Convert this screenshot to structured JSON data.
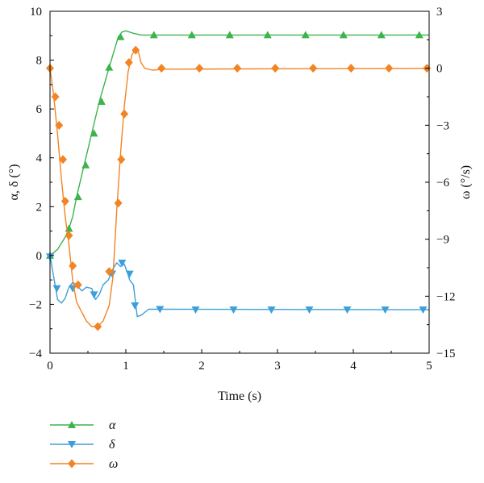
{
  "chart_data": {
    "type": "line",
    "xlabel": "Time (s)",
    "ylabel_left": "α, δ (°)",
    "ylabel_right": "ω (°/s)",
    "xlim": [
      0,
      5
    ],
    "ylim_left": [
      -4,
      10
    ],
    "ylim_right": [
      -15,
      3
    ],
    "xticks": [
      0,
      1,
      2,
      3,
      4,
      5
    ],
    "yticks_left": [
      -4,
      -2,
      0,
      2,
      4,
      6,
      8,
      10
    ],
    "yticks_right": [
      -15,
      -12,
      -9,
      -6,
      -3,
      0,
      3
    ],
    "grid": false,
    "legend_position": "bottom-left, below plot",
    "series": [
      {
        "name": "α",
        "axis": "left",
        "color": "#3cb44b",
        "marker": "triangle-up",
        "line": [
          [
            0,
            0
          ],
          [
            0.1,
            0.25
          ],
          [
            0.2,
            0.75
          ],
          [
            0.25,
            1.1
          ],
          [
            0.3,
            1.6
          ],
          [
            0.35,
            2.4
          ],
          [
            0.45,
            3.7
          ],
          [
            0.55,
            5.0
          ],
          [
            0.65,
            6.3
          ],
          [
            0.78,
            7.7
          ],
          [
            0.9,
            8.95
          ],
          [
            0.95,
            9.15
          ],
          [
            1.0,
            9.2
          ],
          [
            1.1,
            9.1
          ],
          [
            1.2,
            9.03
          ],
          [
            1.4,
            9.03
          ],
          [
            5,
            9.03
          ]
        ],
        "markers": [
          [
            0,
            0
          ],
          [
            0.25,
            1.1
          ],
          [
            0.37,
            2.4
          ],
          [
            0.47,
            3.7
          ],
          [
            0.58,
            5.0
          ],
          [
            0.68,
            6.3
          ],
          [
            0.78,
            7.7
          ],
          [
            0.93,
            8.95
          ],
          [
            1.37,
            9.03
          ],
          [
            1.87,
            9.03
          ],
          [
            2.37,
            9.03
          ],
          [
            2.87,
            9.03
          ],
          [
            3.37,
            9.03
          ],
          [
            3.87,
            9.03
          ],
          [
            4.37,
            9.03
          ],
          [
            4.87,
            9.03
          ]
        ]
      },
      {
        "name": "δ",
        "axis": "left",
        "color": "#3d9fd9",
        "marker": "triangle-down",
        "line": [
          [
            0,
            0
          ],
          [
            0.05,
            -0.9
          ],
          [
            0.1,
            -1.8
          ],
          [
            0.15,
            -1.95
          ],
          [
            0.2,
            -1.75
          ],
          [
            0.25,
            -1.3
          ],
          [
            0.3,
            -1.1
          ],
          [
            0.35,
            -1.2
          ],
          [
            0.42,
            -1.45
          ],
          [
            0.48,
            -1.3
          ],
          [
            0.55,
            -1.35
          ],
          [
            0.6,
            -1.8
          ],
          [
            0.65,
            -1.6
          ],
          [
            0.7,
            -1.2
          ],
          [
            0.77,
            -1.0
          ],
          [
            0.82,
            -0.6
          ],
          [
            0.88,
            -0.3
          ],
          [
            0.93,
            -0.45
          ],
          [
            0.98,
            -0.35
          ],
          [
            1.02,
            -0.7
          ],
          [
            1.05,
            -1.0
          ],
          [
            1.1,
            -1.2
          ],
          [
            1.15,
            -2.5
          ],
          [
            1.2,
            -2.45
          ],
          [
            1.3,
            -2.2
          ],
          [
            1.45,
            -2.2
          ],
          [
            5,
            -2.22
          ]
        ],
        "markers": [
          [
            0,
            -0.05
          ],
          [
            0.09,
            -1.35
          ],
          [
            0.3,
            -1.35
          ],
          [
            0.58,
            -1.6
          ],
          [
            0.82,
            -0.75
          ],
          [
            0.95,
            -0.3
          ],
          [
            1.05,
            -0.75
          ],
          [
            1.12,
            -2.05
          ],
          [
            1.45,
            -2.2
          ],
          [
            1.92,
            -2.22
          ],
          [
            2.42,
            -2.22
          ],
          [
            2.92,
            -2.22
          ],
          [
            3.42,
            -2.22
          ],
          [
            3.92,
            -2.22
          ],
          [
            4.42,
            -2.22
          ],
          [
            4.92,
            -2.22
          ]
        ]
      },
      {
        "name": "ω",
        "axis": "right",
        "color": "#f28424",
        "marker": "diamond",
        "line": [
          [
            0,
            0
          ],
          [
            0.05,
            -1.5
          ],
          [
            0.1,
            -3.5
          ],
          [
            0.15,
            -5.8
          ],
          [
            0.2,
            -7.8
          ],
          [
            0.25,
            -9.3
          ],
          [
            0.3,
            -11.2
          ],
          [
            0.35,
            -12.3
          ],
          [
            0.4,
            -12.7
          ],
          [
            0.48,
            -13.3
          ],
          [
            0.55,
            -13.6
          ],
          [
            0.63,
            -13.6
          ],
          [
            0.7,
            -13.3
          ],
          [
            0.78,
            -12.5
          ],
          [
            0.83,
            -11.0
          ],
          [
            0.88,
            -7.5
          ],
          [
            0.93,
            -4.5
          ],
          [
            0.98,
            -2.0
          ],
          [
            1.03,
            -0.2
          ],
          [
            1.08,
            0.7
          ],
          [
            1.13,
            1.05
          ],
          [
            1.17,
            0.8
          ],
          [
            1.2,
            0.3
          ],
          [
            1.25,
            0
          ],
          [
            1.35,
            -0.1
          ],
          [
            1.5,
            -0.05
          ],
          [
            5,
            0
          ]
        ],
        "markers": [
          [
            0,
            0
          ],
          [
            0.07,
            -1.5
          ],
          [
            0.12,
            -3.0
          ],
          [
            0.17,
            -4.8
          ],
          [
            0.2,
            -7.0
          ],
          [
            0.25,
            -8.8
          ],
          [
            0.3,
            -10.4
          ],
          [
            0.37,
            -11.4
          ],
          [
            0.63,
            -13.6
          ],
          [
            0.78,
            -10.7
          ],
          [
            0.9,
            -7.1
          ],
          [
            0.94,
            -4.8
          ],
          [
            0.98,
            -2.4
          ],
          [
            1.04,
            0.3
          ],
          [
            1.13,
            0.95
          ],
          [
            1.47,
            0
          ],
          [
            1.97,
            0
          ],
          [
            2.47,
            0
          ],
          [
            2.97,
            0
          ],
          [
            3.47,
            0
          ],
          [
            3.97,
            0
          ],
          [
            4.47,
            0
          ],
          [
            4.97,
            0
          ]
        ]
      }
    ]
  }
}
